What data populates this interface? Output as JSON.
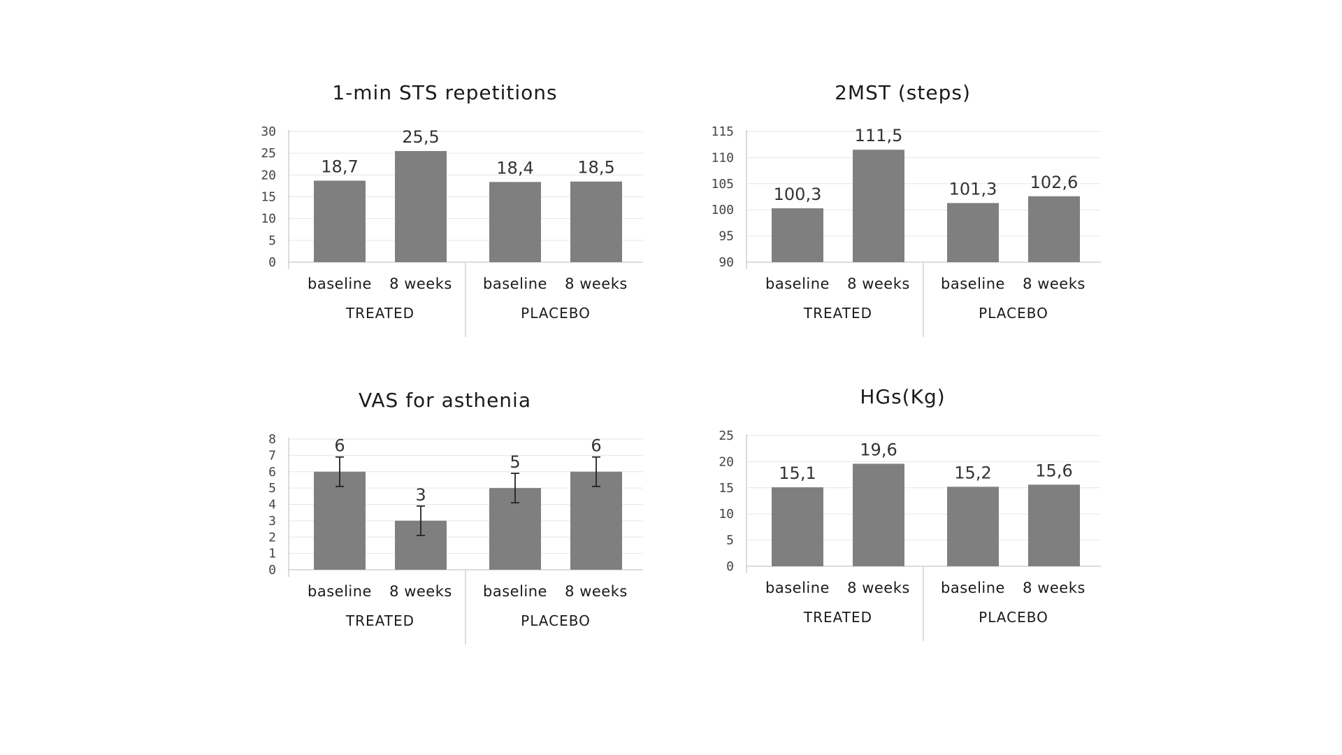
{
  "colors": {
    "bar": "#7f7f7f"
  },
  "chart_data": [
    {
      "type": "bar",
      "title": "1-min STS repetitions",
      "groups": [
        "TREATED",
        "PLACEBO"
      ],
      "categories": [
        "baseline",
        "8 weeks",
        "baseline",
        "8 weeks"
      ],
      "values": [
        18.7,
        25.5,
        18.4,
        18.5
      ],
      "value_labels": [
        "18,7",
        "25,5",
        "18,4",
        "18,5"
      ],
      "ylim": [
        0,
        30
      ],
      "yticks": [
        0,
        5,
        10,
        15,
        20,
        25,
        30
      ],
      "grid": true
    },
    {
      "type": "bar",
      "title": "2MST (steps)",
      "groups": [
        "TREATED",
        "PLACEBO"
      ],
      "categories": [
        "baseline",
        "8 weeks",
        "baseline",
        "8 weeks"
      ],
      "values": [
        100.3,
        111.5,
        101.3,
        102.6
      ],
      "value_labels": [
        "100,3",
        "111,5",
        "101,3",
        "102,6"
      ],
      "ylim": [
        90,
        115
      ],
      "yticks": [
        90,
        95,
        100,
        105,
        110,
        115
      ],
      "grid": true
    },
    {
      "type": "bar",
      "title": "VAS for asthenia",
      "groups": [
        "TREATED",
        "PLACEBO"
      ],
      "categories": [
        "baseline",
        "8 weeks",
        "baseline",
        "8 weeks"
      ],
      "values": [
        6,
        3,
        5,
        6
      ],
      "value_labels": [
        "6",
        "3",
        "5",
        "6"
      ],
      "error": [
        0.9,
        0.9,
        0.9,
        0.9
      ],
      "ylim": [
        0,
        8
      ],
      "yticks": [
        0,
        1,
        2,
        3,
        4,
        5,
        6,
        7,
        8
      ],
      "grid": true
    },
    {
      "type": "bar",
      "title": "HGs(Kg)",
      "groups": [
        "TREATED",
        "PLACEBO"
      ],
      "categories": [
        "baseline",
        "8 weeks",
        "baseline",
        "8 weeks"
      ],
      "values": [
        15.1,
        19.6,
        15.2,
        15.6
      ],
      "value_labels": [
        "15,1",
        "19,6",
        "15,2",
        "15,6"
      ],
      "ylim": [
        0,
        25
      ],
      "yticks": [
        0,
        5,
        10,
        15,
        20,
        25
      ],
      "grid": true
    }
  ]
}
